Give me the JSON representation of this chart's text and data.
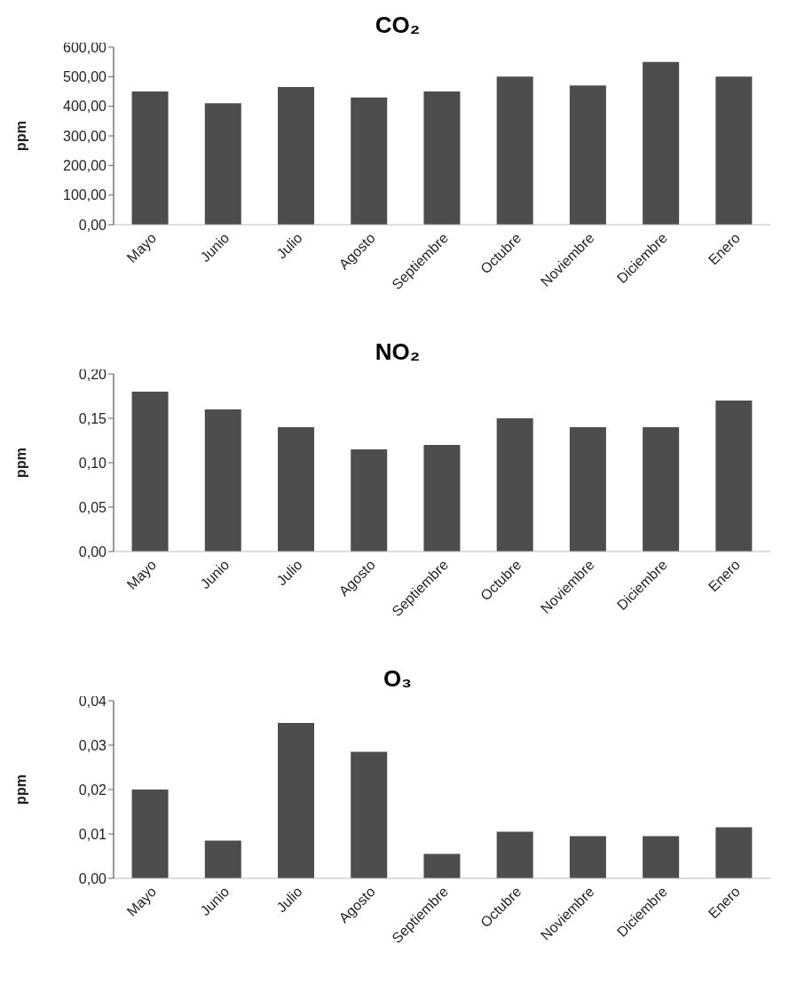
{
  "chart_data": [
    {
      "type": "bar",
      "title": "CO₂",
      "ylabel": "ppm",
      "categories": [
        "Mayo",
        "Junio",
        "Julio",
        "Agosto",
        "Septiembre",
        "Octubre",
        "Noviembre",
        "Diciembre",
        "Enero"
      ],
      "values": [
        450,
        410,
        465,
        430,
        450,
        500,
        470,
        550,
        500
      ],
      "color": "#4d4d4d",
      "ylim": [
        0,
        600
      ],
      "yticks": [
        {
          "value": 0,
          "label": "0,00"
        },
        {
          "value": 100,
          "label": "100,00"
        },
        {
          "value": 200,
          "label": "200,00"
        },
        {
          "value": 300,
          "label": "300,00"
        },
        {
          "value": 400,
          "label": "400,00"
        },
        {
          "value": 500,
          "label": "500,00"
        },
        {
          "value": 600,
          "label": "600,00"
        }
      ],
      "grid": false,
      "legend": false
    },
    {
      "type": "bar",
      "title": "NO₂",
      "ylabel": "ppm",
      "categories": [
        "Mayo",
        "Junio",
        "Julio",
        "Agosto",
        "Septiembre",
        "Octubre",
        "Noviembre",
        "Diciembre",
        "Enero"
      ],
      "values": [
        0.18,
        0.16,
        0.14,
        0.115,
        0.12,
        0.15,
        0.14,
        0.14,
        0.17
      ],
      "color": "#4d4d4d",
      "ylim": [
        0,
        0.2
      ],
      "yticks": [
        {
          "value": 0,
          "label": "0,00"
        },
        {
          "value": 0.05,
          "label": "0,05"
        },
        {
          "value": 0.1,
          "label": "0,10"
        },
        {
          "value": 0.15,
          "label": "0,15"
        },
        {
          "value": 0.2,
          "label": "0,20"
        }
      ],
      "grid": false,
      "legend": false
    },
    {
      "type": "bar",
      "title": "O₃",
      "ylabel": "ppm",
      "categories": [
        "Mayo",
        "Junio",
        "Julio",
        "Agosto",
        "Septiembre",
        "Octubre",
        "Noviembre",
        "Diciembre",
        "Enero"
      ],
      "values": [
        0.02,
        0.0085,
        0.035,
        0.0285,
        0.0055,
        0.0105,
        0.0095,
        0.0095,
        0.0115
      ],
      "color": "#4d4d4d",
      "ylim": [
        0,
        0.04
      ],
      "yticks": [
        {
          "value": 0,
          "label": "0,00"
        },
        {
          "value": 0.01,
          "label": "0,01"
        },
        {
          "value": 0.02,
          "label": "0,02"
        },
        {
          "value": 0.03,
          "label": "0,03"
        },
        {
          "value": 0.04,
          "label": "0,04"
        }
      ],
      "grid": false,
      "legend": false
    }
  ]
}
